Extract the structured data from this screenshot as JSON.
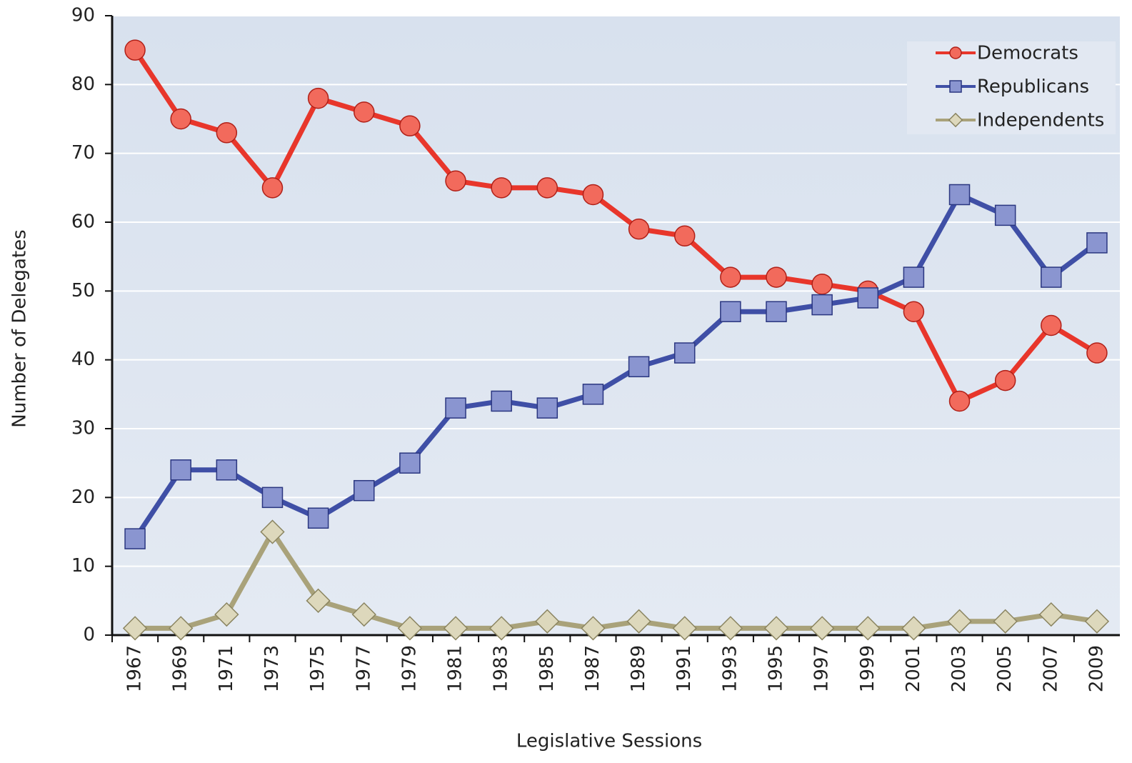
{
  "chart_data": {
    "type": "line",
    "x_label": "Legislative Sessions",
    "y_label": "Number of Delegates",
    "categories": [
      "1967",
      "1969",
      "1971",
      "1973",
      "1975",
      "1977",
      "1979",
      "1981",
      "1983",
      "1985",
      "1987",
      "1989",
      "1991",
      "1993",
      "1995",
      "1997",
      "1999",
      "2001",
      "2003",
      "2005",
      "2007",
      "2009"
    ],
    "series": [
      {
        "name": "Democrats",
        "color": "#e8362b",
        "marker": "circle",
        "values": [
          85,
          75,
          73,
          65,
          78,
          76,
          74,
          66,
          65,
          65,
          64,
          59,
          58,
          52,
          52,
          51,
          50,
          47,
          34,
          37,
          45,
          41
        ]
      },
      {
        "name": "Republicans",
        "color": "#3f4fa6",
        "marker": "square",
        "values": [
          14,
          24,
          24,
          20,
          17,
          21,
          25,
          33,
          34,
          33,
          35,
          39,
          41,
          47,
          47,
          48,
          49,
          52,
          64,
          61,
          52,
          57
        ]
      },
      {
        "name": "Independents",
        "color": "#a9a27a",
        "marker": "diamond",
        "values": [
          1,
          1,
          3,
          15,
          5,
          3,
          1,
          1,
          1,
          2,
          1,
          2,
          1,
          1,
          1,
          1,
          1,
          1,
          2,
          2,
          3,
          2
        ]
      }
    ],
    "ylim": [
      0,
      90
    ],
    "yticks": [
      0,
      10,
      20,
      30,
      40,
      50,
      60,
      70,
      80,
      90
    ],
    "grid": true,
    "legend": "top-right"
  }
}
